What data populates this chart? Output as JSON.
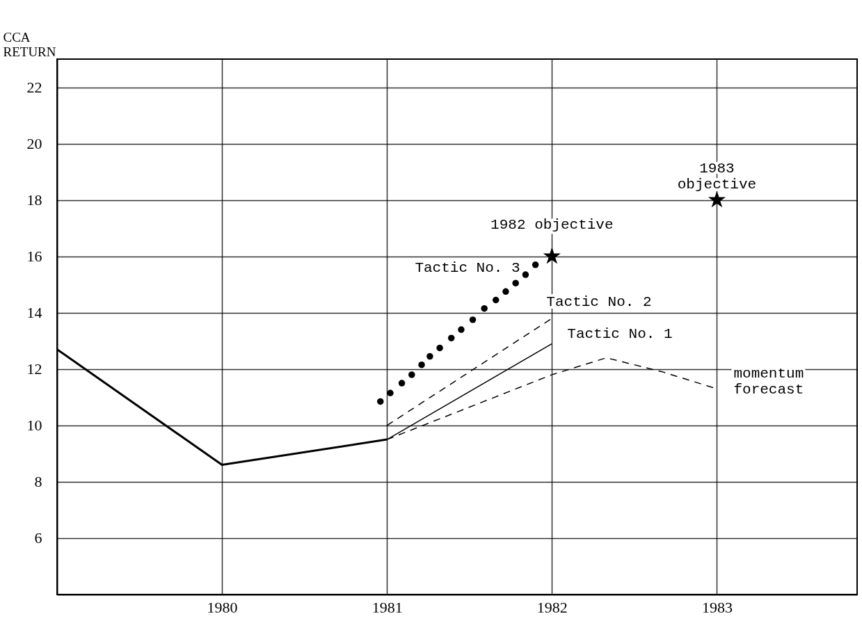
{
  "chart_data": {
    "type": "line",
    "ylabel": "CCA\nRETURN",
    "xlim": [
      1979,
      1983.85
    ],
    "xticks": [
      1980,
      1981,
      1982,
      1983
    ],
    "ylim": [
      4,
      23
    ],
    "yticks": [
      6,
      8,
      10,
      12,
      14,
      16,
      18,
      20,
      22
    ],
    "grid": true,
    "series": [
      {
        "color": "#000000",
        "x": [
          1979,
          1980,
          1981
        ],
        "values": [
          12.7,
          8.6,
          9.5
        ]
      },
      {
        "name": "Tactic No. 1",
        "color": "#000000",
        "x": [
          1981,
          1982
        ],
        "values": [
          9.5,
          12.9
        ]
      },
      {
        "name": "Tactic No. 2",
        "color": "#000000",
        "line_style": "dashed",
        "x": [
          1981,
          1982
        ],
        "values": [
          10.0,
          13.8
        ]
      },
      {
        "name": "Tactic No. 3",
        "type": "scatter",
        "marker": "circle",
        "color": "#000000",
        "x": [
          1980.96,
          1981.02,
          1981.09,
          1981.15,
          1981.21,
          1981.26,
          1981.32,
          1981.39,
          1981.45,
          1981.52,
          1981.59,
          1981.66,
          1981.72,
          1981.78,
          1981.84,
          1981.9
        ],
        "values": [
          10.85,
          11.15,
          11.5,
          11.8,
          12.15,
          12.45,
          12.75,
          13.1,
          13.4,
          13.75,
          14.15,
          14.45,
          14.75,
          15.05,
          15.35,
          15.7
        ]
      },
      {
        "name": "momentum\nforecast",
        "color": "#000000",
        "line_style": "dashed",
        "x": [
          1981,
          1982,
          1982.33,
          1982.67,
          1983
        ],
        "values": [
          9.5,
          11.8,
          12.4,
          11.9,
          11.3
        ]
      },
      {
        "type": "scatter",
        "marker": "star",
        "color": "#000000",
        "x": [
          1982,
          1983
        ],
        "values": [
          16,
          18
        ]
      }
    ],
    "annotations": [
      {
        "text": "1982 objective",
        "x": 1982,
        "y": 16
      },
      {
        "text": "1983\nobjective",
        "x": 1983,
        "y": 18
      }
    ]
  }
}
